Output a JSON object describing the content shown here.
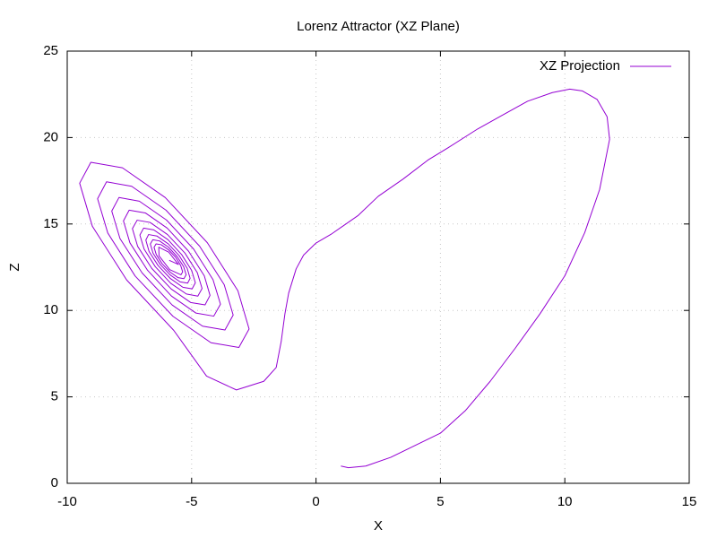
{
  "chart_data": {
    "type": "line",
    "title": "Lorenz Attractor (XZ Plane)",
    "xlabel": "X",
    "ylabel": "Z",
    "xlim": [
      -10,
      15
    ],
    "ylim": [
      0,
      25
    ],
    "xticks": [
      -10,
      -5,
      0,
      5,
      10,
      15
    ],
    "yticks": [
      0,
      5,
      10,
      15,
      20,
      25
    ],
    "grid": true,
    "legend": "upper right",
    "x": [
      1,
      1.3,
      2,
      3,
      4,
      5,
      6,
      7,
      8,
      9,
      10,
      10.8,
      11.4,
      11.8,
      11.7,
      11.3,
      10.7,
      10.2,
      9.5,
      8.5,
      7.5,
      6.5,
      5.3,
      4.5,
      3.5,
      2.5,
      1.7,
      0.6,
      0,
      -0.5,
      -0.8,
      -1.1,
      -1.25,
      -1.4,
      -1.6,
      -2.1,
      -3.2,
      -4.4,
      -5.72,
      -7.61,
      -8.99,
      -9.5,
      -9.05,
      -7.78,
      -6.06,
      -4.37,
      -3.14,
      -2.69,
      -3.1,
      -4.22,
      -5.75,
      -7.27,
      -8.37,
      -8.78,
      -8.42,
      -7.41,
      -6.03,
      -4.68,
      -3.69,
      -3.33,
      -3.66,
      -4.56,
      -5.78,
      -6.99,
      -7.88,
      -8.21,
      -7.92,
      -7.1,
      -6.01,
      -4.92,
      -4.14,
      -3.84,
      -4.11,
      -4.83,
      -5.81,
      -6.77,
      -7.48,
      -7.74,
      -7.51,
      -6.86,
      -5.98,
      -5.12,
      -4.49,
      -4.26,
      -4.46,
      -5.04,
      -5.82,
      -6.6,
      -7.17,
      -7.38,
      -7.19,
      -6.67,
      -5.97,
      -5.27,
      -4.77,
      -4.58,
      -4.75,
      -5.21,
      -5.84,
      -6.46,
      -6.91,
      -7.08,
      -6.93,
      -6.52,
      -5.95,
      -5.4,
      -5.0,
      -4.85,
      -4.98,
      -5.35,
      -5.85,
      -6.35,
      -6.71,
      -6.84,
      -6.73,
      -6.39,
      -5.94,
      -5.5,
      -5.18,
      -5.06,
      -5.16,
      -5.46,
      -5.86,
      -6.26,
      -6.55,
      -6.66,
      -6.56,
      -6.29,
      -5.93,
      -5.58,
      -5.32,
      -5.22,
      -5.31,
      -5.55,
      -5.87,
      -6.19,
      -6.42,
      -6.51,
      -6.43,
      -6.22,
      -5.93,
      -5.64,
      -5.44,
      -5.36,
      -5.43,
      -5.88,
      -6.31,
      -6.32,
      -5.92,
      -5.53,
      -5.9
    ],
    "series": [
      {
        "name": "XZ Projection",
        "color": "#9400d3",
        "values": [
          1,
          0.9,
          1,
          1.5,
          2.2,
          2.9,
          4.2,
          5.9,
          7.8,
          9.8,
          12,
          14.5,
          17,
          19.9,
          21.2,
          22.2,
          22.7,
          22.8,
          22.6,
          22.1,
          21.3,
          20.5,
          19.4,
          18.7,
          17.6,
          16.6,
          15.5,
          14.4,
          13.9,
          13.2,
          12.4,
          11,
          9.8,
          8.2,
          6.7,
          5.9,
          5.4,
          6.2,
          8.85,
          11.76,
          14.87,
          17.36,
          18.57,
          18.25,
          16.53,
          13.92,
          11.14,
          8.93,
          7.86,
          8.13,
          9.66,
          11.99,
          14.48,
          16.46,
          17.44,
          17.18,
          15.8,
          13.72,
          11.49,
          9.73,
          8.87,
          9.09,
          10.31,
          12.17,
          14.16,
          15.75,
          16.53,
          16.32,
          15.23,
          13.55,
          11.78,
          10.36,
          9.67,
          9.85,
          10.83,
          12.32,
          13.91,
          15.18,
          15.8,
          15.64,
          14.76,
          13.42,
          12.0,
          10.87,
          10.32,
          10.46,
          11.24,
          12.43,
          13.71,
          14.73,
          15.22,
          15.09,
          14.39,
          13.32,
          12.18,
          11.27,
          10.83,
          10.95,
          11.57,
          12.53,
          13.55,
          14.36,
          14.76,
          14.66,
          14.09,
          13.23,
          12.32,
          11.6,
          11.25,
          11.34,
          11.84,
          12.6,
          13.41,
          14.07,
          14.39,
          14.3,
          13.85,
          13.17,
          12.44,
          11.86,
          11.58,
          11.65,
          12.05,
          12.66,
          13.31,
          13.84,
          14.09,
          14.02,
          13.66,
          13.11,
          12.53,
          12.06,
          11.84,
          11.9,
          12.22,
          12.71,
          13.23,
          13.65,
          13.85,
          13.8,
          13.51,
          13.07,
          12.6,
          12.23,
          12.06,
          12.36,
          13.16,
          13.66,
          13.37,
          12.66,
          12.9
        ]
      }
    ]
  }
}
